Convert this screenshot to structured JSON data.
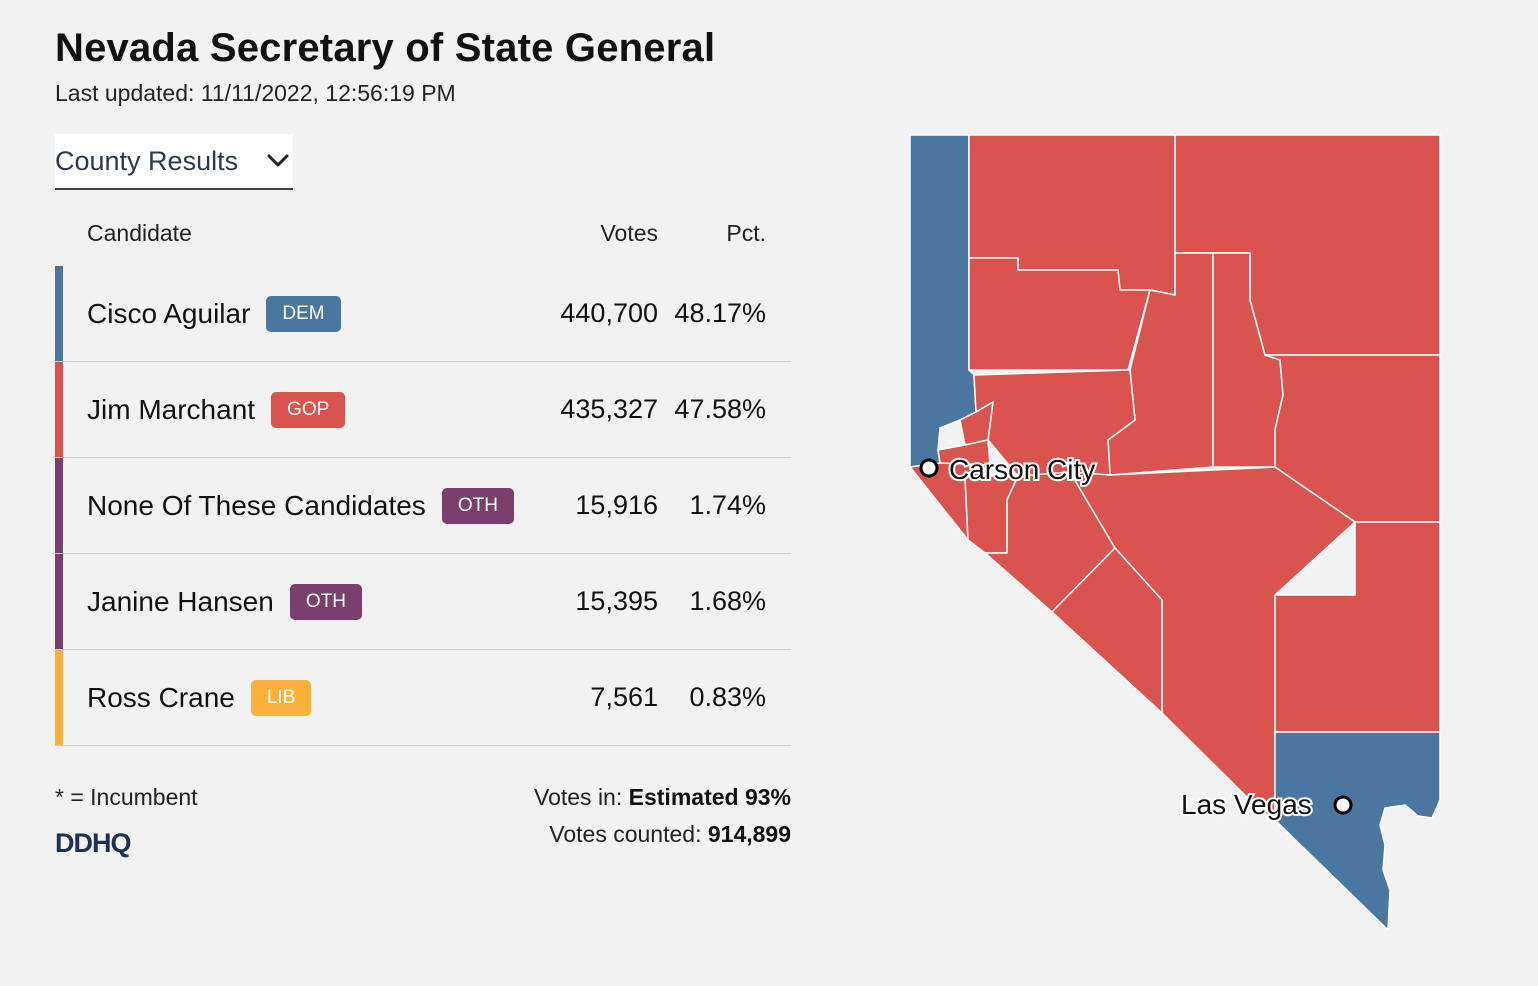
{
  "header": {
    "title": "Nevada Secretary of State General",
    "updated_label": "Last updated:",
    "updated_value": "11/11/2022, 12:56:19 PM"
  },
  "dropdown": {
    "selected": "County Results"
  },
  "table": {
    "columns": {
      "candidate": "Candidate",
      "votes": "Votes",
      "pct": "Pct."
    },
    "rows": [
      {
        "name": "Cisco Aguilar",
        "party": "DEM",
        "votes": "440,700",
        "pct": "48.17%",
        "color": "#4a76a0"
      },
      {
        "name": "Jim Marchant",
        "party": "GOP",
        "votes": "435,327",
        "pct": "47.58%",
        "color": "#d9534f"
      },
      {
        "name": "None Of These Candidates",
        "party": "OTH",
        "votes": "15,916",
        "pct": "1.74%",
        "color": "#7b3f6e"
      },
      {
        "name": "Janine Hansen",
        "party": "OTH",
        "votes": "15,395",
        "pct": "1.68%",
        "color": "#7b3f6e"
      },
      {
        "name": "Ross Crane",
        "party": "LIB",
        "votes": "7,561",
        "pct": "0.83%",
        "color": "#fbb03b"
      }
    ]
  },
  "footer": {
    "incumbent_note": "* = Incumbent",
    "logo": "DDHQ",
    "votes_in_label": "Votes in:",
    "votes_in_value": "Estimated 93%",
    "votes_counted_label": "Votes counted:",
    "votes_counted_value": "914,899"
  },
  "map": {
    "colors": {
      "dem": "#4a76a0",
      "gop": "#d9534f"
    },
    "cities": {
      "carson": "Carson City",
      "vegas": "Las Vegas"
    }
  }
}
